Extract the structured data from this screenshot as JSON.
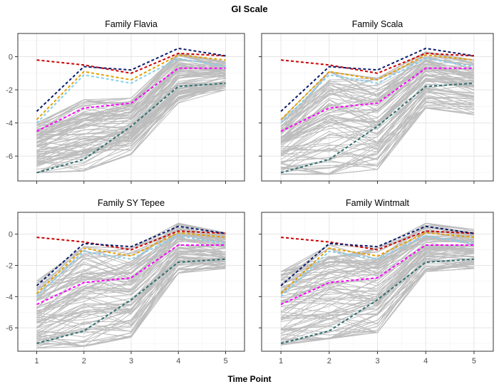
{
  "chart_data": {
    "type": "line",
    "title": "GI Scale",
    "xlabel": "Time Point",
    "ylabel": "",
    "x": [
      1,
      2,
      3,
      4,
      5
    ],
    "xlim": [
      0.6,
      5.4
    ],
    "ylim": [
      -7.5,
      1.4
    ],
    "yticks": [
      0,
      -2,
      -4,
      -6
    ],
    "ytick_labels": [
      "0",
      "-2",
      "-4",
      "-6"
    ],
    "grid": true,
    "panels": [
      {
        "title": "Family Flavia",
        "gray_band": {
          "lower": [
            -7.0,
            -6.9,
            -5.9,
            -2.8,
            -2.0
          ],
          "upper": [
            -4.0,
            -2.6,
            -2.5,
            0.2,
            -0.3
          ]
        }
      },
      {
        "title": "Family Scala",
        "gray_band": {
          "lower": [
            -7.1,
            -7.1,
            -6.8,
            -3.1,
            -3.5
          ],
          "upper": [
            -3.8,
            -0.9,
            -1.3,
            0.3,
            -0.2
          ]
        }
      },
      {
        "title": "Family SY Tepee",
        "gray_band": {
          "lower": [
            -7.3,
            -7.2,
            -6.6,
            -2.5,
            -2.2
          ],
          "upper": [
            -3.0,
            -0.8,
            -0.9,
            0.7,
            0.1
          ]
        }
      },
      {
        "title": "Family Wintmalt",
        "gray_band": {
          "lower": [
            -7.1,
            -6.7,
            -6.3,
            -2.4,
            -2.2
          ],
          "upper": [
            -2.4,
            -0.7,
            -0.9,
            0.7,
            0.3
          ]
        }
      }
    ],
    "reference_lines": [
      {
        "color": "#CC0000",
        "values": [
          -0.2,
          -0.5,
          -1.0,
          0.2,
          0.05
        ]
      },
      {
        "color": "#0A1A6B",
        "values": [
          -3.3,
          -0.6,
          -0.8,
          0.5,
          0.05
        ]
      },
      {
        "color": "#E69F00",
        "values": [
          -3.8,
          -0.9,
          -1.4,
          0.1,
          -0.2
        ]
      },
      {
        "color": "#87CEEB",
        "values": [
          -4.0,
          -1.1,
          -1.6,
          -0.1,
          -0.6
        ]
      },
      {
        "color": "#FF00FF",
        "values": [
          -4.5,
          -3.1,
          -2.8,
          -0.7,
          -0.7
        ]
      },
      {
        "color": "#2F6F6F",
        "values": [
          -7.0,
          -6.2,
          -4.2,
          -1.8,
          -1.6
        ]
      }
    ]
  },
  "colors": {
    "panel_border": "#333333",
    "grid_major": "#E5E5E5",
    "grid_minor": "#F2F2F2",
    "gray_lines": "#BDBDBD"
  }
}
